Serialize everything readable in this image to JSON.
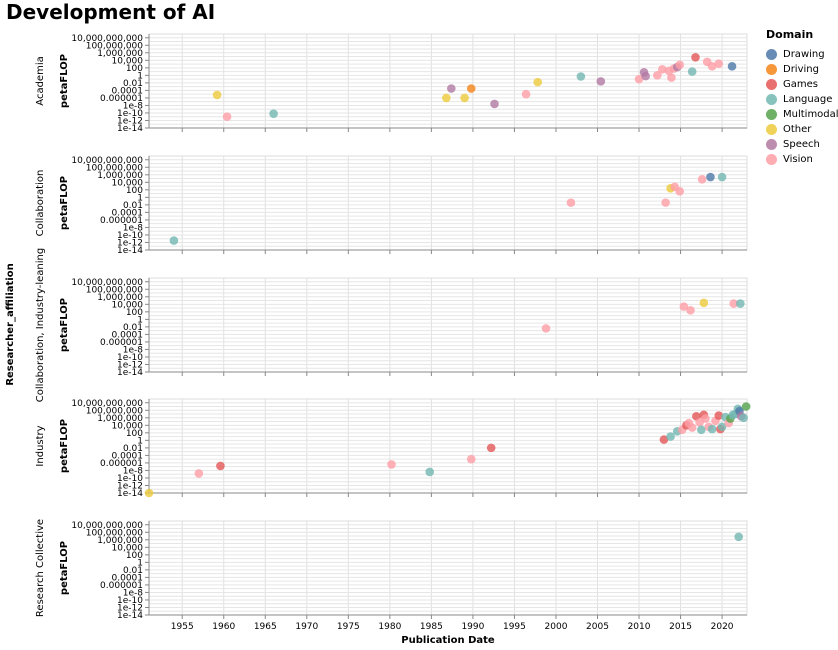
{
  "chart_data": {
    "type": "scatter",
    "title": "Development of AI",
    "xlabel": "Publication Date",
    "ylabel": "petaFLOP",
    "row_title": "Researcher_affiliation",
    "x_ticks": [
      "1955",
      "1960",
      "1965",
      "1970",
      "1975",
      "1980",
      "1985",
      "1990",
      "1995",
      "2000",
      "2005",
      "2010",
      "2015",
      "2020"
    ],
    "xlim": [
      1951,
      2023
    ],
    "y_scale": "log",
    "y_ticks": [
      "10,000,000,000",
      "100,000,000",
      "1,000,000",
      "10,000",
      "100",
      "1",
      "0.01",
      "0.0001",
      "0.000001",
      "1e-8",
      "1e-10",
      "1e-12",
      "1e-14"
    ],
    "y_tick_exponents": [
      10,
      8,
      6,
      4,
      2,
      0,
      -2,
      -4,
      -6,
      -8,
      -10,
      -12,
      -14
    ],
    "ylim_exponent": [
      -14,
      11
    ],
    "grid": true,
    "legend": {
      "title": "Domain",
      "position": "top-right",
      "items": [
        {
          "label": "Drawing",
          "color": "#4c78a8"
        },
        {
          "label": "Driving",
          "color": "#f58518"
        },
        {
          "label": "Games",
          "color": "#e45756"
        },
        {
          "label": "Language",
          "color": "#72b7b2"
        },
        {
          "label": "Multimodal",
          "color": "#54a24b"
        },
        {
          "label": "Other",
          "color": "#eeca3b"
        },
        {
          "label": "Speech",
          "color": "#b279a2"
        },
        {
          "label": "Vision",
          "color": "#ff9da6"
        }
      ]
    },
    "facets": [
      {
        "label": "Academia",
        "points": [
          {
            "x": 1959.2,
            "log10_y": -5.2,
            "domain": "Other"
          },
          {
            "x": 1960.4,
            "log10_y": -11,
            "domain": "Vision"
          },
          {
            "x": 1966.0,
            "log10_y": -10.2,
            "domain": "Language"
          },
          {
            "x": 1986.8,
            "log10_y": -6.0,
            "domain": "Other"
          },
          {
            "x": 1987.4,
            "log10_y": -3.5,
            "domain": "Speech"
          },
          {
            "x": 1989.0,
            "log10_y": -6.0,
            "domain": "Other"
          },
          {
            "x": 1989.8,
            "log10_y": -3.5,
            "domain": "Driving"
          },
          {
            "x": 1992.6,
            "log10_y": -7.6,
            "domain": "Speech"
          },
          {
            "x": 1996.4,
            "log10_y": -5.0,
            "domain": "Vision"
          },
          {
            "x": 1997.8,
            "log10_y": -1.8,
            "domain": "Other"
          },
          {
            "x": 2003.0,
            "log10_y": -0.3,
            "domain": "Language"
          },
          {
            "x": 2005.4,
            "log10_y": -1.6,
            "domain": "Speech"
          },
          {
            "x": 2010.0,
            "log10_y": -1.0,
            "domain": "Vision"
          },
          {
            "x": 2010.6,
            "log10_y": 0.8,
            "domain": "Speech"
          },
          {
            "x": 2010.8,
            "log10_y": -0.2,
            "domain": "Speech"
          },
          {
            "x": 2012.2,
            "log10_y": 0.0,
            "domain": "Vision"
          },
          {
            "x": 2012.8,
            "log10_y": 1.6,
            "domain": "Vision"
          },
          {
            "x": 2013.6,
            "log10_y": 1.2,
            "domain": "Vision"
          },
          {
            "x": 2013.9,
            "log10_y": -0.6,
            "domain": "Vision"
          },
          {
            "x": 2014.2,
            "log10_y": 1.8,
            "domain": "Vision"
          },
          {
            "x": 2014.6,
            "log10_y": 2.2,
            "domain": "Speech"
          },
          {
            "x": 2014.9,
            "log10_y": 2.8,
            "domain": "Vision"
          },
          {
            "x": 2016.4,
            "log10_y": 1.0,
            "domain": "Language"
          },
          {
            "x": 2016.8,
            "log10_y": 4.8,
            "domain": "Games"
          },
          {
            "x": 2018.2,
            "log10_y": 3.6,
            "domain": "Vision"
          },
          {
            "x": 2018.8,
            "log10_y": 2.4,
            "domain": "Vision"
          },
          {
            "x": 2019.6,
            "log10_y": 3.1,
            "domain": "Vision"
          },
          {
            "x": 2021.2,
            "log10_y": 2.4,
            "domain": "Drawing"
          }
        ]
      },
      {
        "label": "Collaboration",
        "points": [
          {
            "x": 1954.0,
            "log10_y": -11.5,
            "domain": "Language"
          },
          {
            "x": 2001.8,
            "log10_y": -1.4,
            "domain": "Vision"
          },
          {
            "x": 2013.2,
            "log10_y": -1.4,
            "domain": "Vision"
          },
          {
            "x": 2013.8,
            "log10_y": 2.4,
            "domain": "Other"
          },
          {
            "x": 2014.3,
            "log10_y": 2.8,
            "domain": "Vision"
          },
          {
            "x": 2014.9,
            "log10_y": 1.6,
            "domain": "Vision"
          },
          {
            "x": 2017.6,
            "log10_y": 4.8,
            "domain": "Vision"
          },
          {
            "x": 2018.6,
            "log10_y": 5.4,
            "domain": "Drawing"
          },
          {
            "x": 2020.0,
            "log10_y": 5.4,
            "domain": "Language"
          }
        ]
      },
      {
        "label": "Collaboration, Industry-leaning",
        "points": [
          {
            "x": 1998.8,
            "log10_y": -2.4,
            "domain": "Vision"
          },
          {
            "x": 2015.4,
            "log10_y": 3.4,
            "domain": "Vision"
          },
          {
            "x": 2016.2,
            "log10_y": 2.4,
            "domain": "Vision"
          },
          {
            "x": 2017.8,
            "log10_y": 4.4,
            "domain": "Other"
          },
          {
            "x": 2021.4,
            "log10_y": 4.2,
            "domain": "Vision"
          },
          {
            "x": 2022.2,
            "log10_y": 4.2,
            "domain": "Language"
          }
        ]
      },
      {
        "label": "Industry",
        "points": [
          {
            "x": 1951.0,
            "log10_y": -14,
            "domain": "Other"
          },
          {
            "x": 1957.0,
            "log10_y": -8.8,
            "domain": "Vision"
          },
          {
            "x": 1959.6,
            "log10_y": -6.8,
            "domain": "Games"
          },
          {
            "x": 1980.2,
            "log10_y": -6.4,
            "domain": "Vision"
          },
          {
            "x": 1984.8,
            "log10_y": -8.4,
            "domain": "Language"
          },
          {
            "x": 1989.8,
            "log10_y": -5.0,
            "domain": "Vision"
          },
          {
            "x": 1992.2,
            "log10_y": -2.0,
            "domain": "Games"
          },
          {
            "x": 2013.0,
            "log10_y": 0.2,
            "domain": "Games"
          },
          {
            "x": 2013.8,
            "log10_y": 1.0,
            "domain": "Language"
          },
          {
            "x": 2014.6,
            "log10_y": 2.4,
            "domain": "Language"
          },
          {
            "x": 2015.2,
            "log10_y": 2.8,
            "domain": "Vision"
          },
          {
            "x": 2015.7,
            "log10_y": 4.0,
            "domain": "Games"
          },
          {
            "x": 2016.0,
            "log10_y": 4.6,
            "domain": "Vision"
          },
          {
            "x": 2016.4,
            "log10_y": 3.4,
            "domain": "Vision"
          },
          {
            "x": 2016.9,
            "log10_y": 6.4,
            "domain": "Games"
          },
          {
            "x": 2017.3,
            "log10_y": 4.8,
            "domain": "Vision"
          },
          {
            "x": 2017.5,
            "log10_y": 2.8,
            "domain": "Language"
          },
          {
            "x": 2017.8,
            "log10_y": 6.8,
            "domain": "Games"
          },
          {
            "x": 2018.0,
            "log10_y": 5.8,
            "domain": "Vision"
          },
          {
            "x": 2018.4,
            "log10_y": 3.6,
            "domain": "Vision"
          },
          {
            "x": 2018.8,
            "log10_y": 3.0,
            "domain": "Language"
          },
          {
            "x": 2019.2,
            "log10_y": 5.2,
            "domain": "Vision"
          },
          {
            "x": 2019.6,
            "log10_y": 6.6,
            "domain": "Games"
          },
          {
            "x": 2019.8,
            "log10_y": 3.0,
            "domain": "Games"
          },
          {
            "x": 2020.0,
            "log10_y": 3.6,
            "domain": "Language"
          },
          {
            "x": 2020.4,
            "log10_y": 6.2,
            "domain": "Language"
          },
          {
            "x": 2020.8,
            "log10_y": 4.6,
            "domain": "Vision"
          },
          {
            "x": 2021.0,
            "log10_y": 5.8,
            "domain": "Multimodal"
          },
          {
            "x": 2021.3,
            "log10_y": 6.8,
            "domain": "Language"
          },
          {
            "x": 2021.6,
            "log10_y": 7.0,
            "domain": "Language"
          },
          {
            "x": 2021.9,
            "log10_y": 8.4,
            "domain": "Language"
          },
          {
            "x": 2022.1,
            "log10_y": 7.8,
            "domain": "Drawing"
          },
          {
            "x": 2022.3,
            "log10_y": 6.4,
            "domain": "Speech"
          },
          {
            "x": 2022.6,
            "log10_y": 6.0,
            "domain": "Language"
          },
          {
            "x": 2022.9,
            "log10_y": 9.0,
            "domain": "Multimodal"
          }
        ]
      },
      {
        "label": "Research Collective",
        "points": [
          {
            "x": 2022.0,
            "log10_y": 6.8,
            "domain": "Language"
          }
        ]
      }
    ]
  }
}
